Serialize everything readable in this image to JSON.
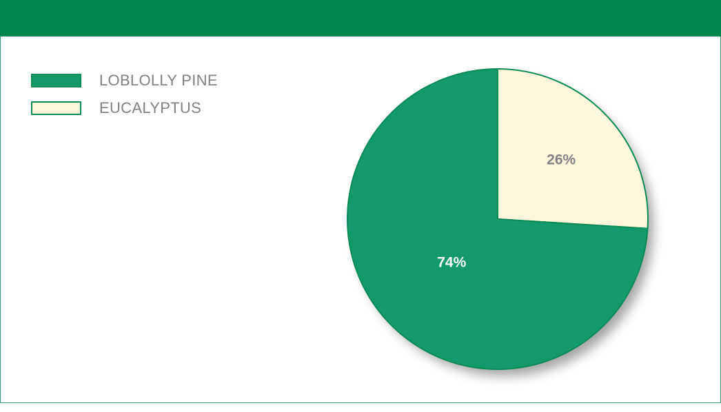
{
  "chart_data": {
    "type": "pie",
    "title": "",
    "slices": [
      {
        "name": "EUCALYPTUS",
        "value": 26,
        "label": "26%",
        "color": "#fff7dc",
        "label_color": "#828287"
      },
      {
        "name": "LOBLOLLY PINE",
        "value": 74,
        "label": "74%",
        "color": "#13996b",
        "label_color": "#ffffff"
      }
    ],
    "legend_position": "top-left",
    "legend": [
      "LOBLOLLY PINE",
      "EUCALYPTUS"
    ],
    "border_color": "#0a8a55"
  },
  "header_color": "#00864f"
}
